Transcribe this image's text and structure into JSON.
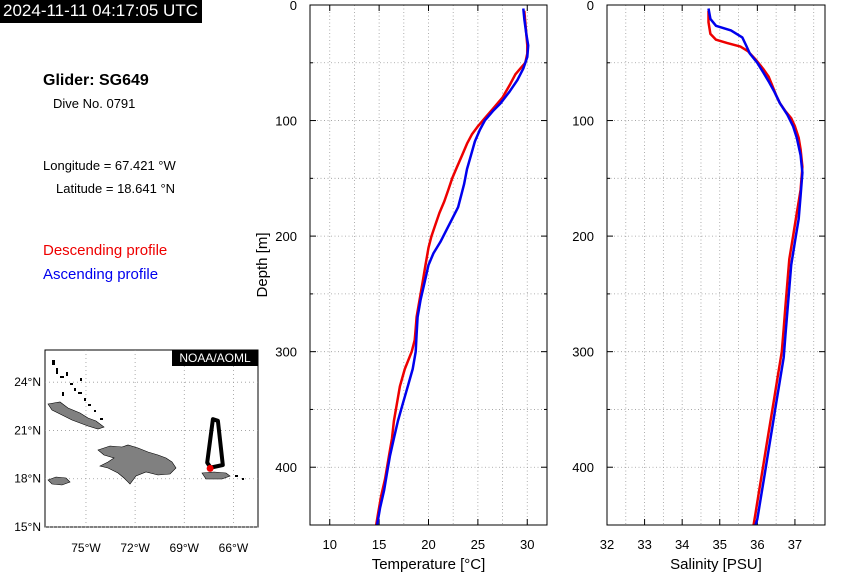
{
  "header": {
    "timestamp": "2024-11-11 04:17:05 UTC"
  },
  "info": {
    "glider": "Glider: SG649",
    "dive": "Dive No. 0791",
    "longitude": "Longitude = 67.421 °W",
    "latitude": "Latitude = 18.641 °N"
  },
  "legend": {
    "descending": "Descending profile",
    "ascending": "Ascending profile",
    "descending_color": "#ee0000",
    "ascending_color": "#0000ee"
  },
  "map": {
    "credit": "NOAA/AOML",
    "lon_labels": [
      "75°W",
      "72°W",
      "69°W",
      "66°W"
    ],
    "lat_labels": [
      "24°N",
      "21°N",
      "18°N",
      "15°N"
    ],
    "lon_ticks": [
      -75,
      -72,
      -69,
      -66
    ],
    "lat_ticks": [
      24,
      21,
      18,
      15
    ],
    "lon_range": [
      -77.5,
      -64.5
    ],
    "lat_range": [
      15,
      26
    ],
    "glider_position": [
      -67.421,
      18.641
    ],
    "track": [
      [
        -67.35,
        18.7
      ],
      [
        -66.65,
        18.85
      ],
      [
        -66.95,
        21.6
      ],
      [
        -67.25,
        21.7
      ],
      [
        -67.6,
        19.0
      ],
      [
        -67.4,
        18.7
      ]
    ],
    "marker_color": "#ee0000",
    "land_color": "#808080"
  },
  "chart_data": [
    {
      "type": "line",
      "xlabel": "Temperature [°C]",
      "ylabel": "Depth [m]",
      "xlim": [
        8,
        32
      ],
      "ylim": [
        450,
        0
      ],
      "xticks": [
        10,
        15,
        20,
        25,
        30
      ],
      "yticks": [
        0,
        100,
        200,
        300,
        400
      ],
      "grid": true,
      "series": [
        {
          "name": "Descending profile",
          "color": "#ee0000",
          "points": [
            [
              29.7,
              5
            ],
            [
              29.8,
              15
            ],
            [
              29.9,
              25
            ],
            [
              30.0,
              35
            ],
            [
              30.0,
              42
            ],
            [
              29.8,
              50
            ],
            [
              29.3,
              55
            ],
            [
              28.8,
              60
            ],
            [
              28.3,
              68
            ],
            [
              27.5,
              80
            ],
            [
              26.5,
              90
            ],
            [
              25.7,
              98
            ],
            [
              25.0,
              105
            ],
            [
              24.4,
              112
            ],
            [
              23.9,
              120
            ],
            [
              23.4,
              130
            ],
            [
              22.9,
              140
            ],
            [
              22.4,
              150
            ],
            [
              22.0,
              160
            ],
            [
              21.6,
              170
            ],
            [
              21.1,
              180
            ],
            [
              20.7,
              190
            ],
            [
              20.3,
              200
            ],
            [
              20.0,
              210
            ],
            [
              19.7,
              225
            ],
            [
              19.4,
              240
            ],
            [
              19.1,
              255
            ],
            [
              18.8,
              270
            ],
            [
              18.7,
              280
            ],
            [
              18.6,
              290
            ],
            [
              18.3,
              300
            ],
            [
              17.6,
              315
            ],
            [
              17.1,
              330
            ],
            [
              16.8,
              345
            ],
            [
              16.5,
              360
            ],
            [
              16.3,
              375
            ],
            [
              16.0,
              390
            ],
            [
              15.6,
              410
            ],
            [
              15.2,
              425
            ],
            [
              14.9,
              440
            ],
            [
              14.7,
              450
            ]
          ]
        },
        {
          "name": "Ascending profile",
          "color": "#0000ee",
          "points": [
            [
              29.6,
              3
            ],
            [
              29.7,
              12
            ],
            [
              29.9,
              25
            ],
            [
              30.1,
              35
            ],
            [
              30.0,
              45
            ],
            [
              29.6,
              55
            ],
            [
              29.0,
              65
            ],
            [
              28.2,
              75
            ],
            [
              27.3,
              85
            ],
            [
              26.5,
              92
            ],
            [
              25.7,
              100
            ],
            [
              25.2,
              108
            ],
            [
              24.7,
              118
            ],
            [
              24.3,
              130
            ],
            [
              23.9,
              142
            ],
            [
              23.6,
              155
            ],
            [
              23.3,
              165
            ],
            [
              23.0,
              175
            ],
            [
              22.4,
              185
            ],
            [
              21.8,
              195
            ],
            [
              21.2,
              205
            ],
            [
              20.5,
              215
            ],
            [
              20.0,
              225
            ],
            [
              19.6,
              240
            ],
            [
              19.2,
              255
            ],
            [
              18.9,
              270
            ],
            [
              18.8,
              285
            ],
            [
              18.7,
              300
            ],
            [
              18.4,
              315
            ],
            [
              17.9,
              330
            ],
            [
              17.4,
              345
            ],
            [
              16.9,
              360
            ],
            [
              16.5,
              375
            ],
            [
              16.1,
              390
            ],
            [
              15.8,
              405
            ],
            [
              15.5,
              420
            ],
            [
              15.1,
              435
            ],
            [
              14.8,
              450
            ]
          ]
        }
      ]
    },
    {
      "type": "line",
      "xlabel": "Salinity [PSU]",
      "ylabel": "",
      "xlim": [
        32,
        37.8
      ],
      "ylim": [
        450,
        0
      ],
      "xticks": [
        32,
        33,
        34,
        35,
        36,
        37
      ],
      "yticks": [
        0,
        100,
        200,
        300,
        400
      ],
      "grid": true,
      "series": [
        {
          "name": "Descending profile",
          "color": "#ee0000",
          "points": [
            [
              34.7,
              5
            ],
            [
              34.7,
              15
            ],
            [
              34.75,
              25
            ],
            [
              34.9,
              30
            ],
            [
              35.2,
              33
            ],
            [
              35.55,
              36
            ],
            [
              35.75,
              40
            ],
            [
              35.95,
              47
            ],
            [
              36.15,
              55
            ],
            [
              36.3,
              62
            ],
            [
              36.4,
              70
            ],
            [
              36.5,
              78
            ],
            [
              36.6,
              85
            ],
            [
              36.75,
              92
            ],
            [
              36.9,
              98
            ],
            [
              37.0,
              105
            ],
            [
              37.1,
              115
            ],
            [
              37.15,
              125
            ],
            [
              37.2,
              140
            ],
            [
              37.15,
              160
            ],
            [
              37.05,
              180
            ],
            [
              36.95,
              200
            ],
            [
              36.85,
              220
            ],
            [
              36.8,
              240
            ],
            [
              36.75,
              260
            ],
            [
              36.7,
              280
            ],
            [
              36.65,
              300
            ],
            [
              36.55,
              320
            ],
            [
              36.45,
              340
            ],
            [
              36.35,
              360
            ],
            [
              36.25,
              380
            ],
            [
              36.15,
              400
            ],
            [
              36.05,
              420
            ],
            [
              35.95,
              440
            ],
            [
              35.9,
              450
            ]
          ]
        },
        {
          "name": "Ascending profile",
          "color": "#0000ee",
          "points": [
            [
              34.7,
              3
            ],
            [
              34.75,
              12
            ],
            [
              34.9,
              18
            ],
            [
              35.3,
              22
            ],
            [
              35.6,
              28
            ],
            [
              35.7,
              35
            ],
            [
              35.8,
              42
            ],
            [
              36.0,
              50
            ],
            [
              36.15,
              58
            ],
            [
              36.3,
              66
            ],
            [
              36.45,
              75
            ],
            [
              36.6,
              85
            ],
            [
              36.8,
              95
            ],
            [
              36.95,
              105
            ],
            [
              37.05,
              115
            ],
            [
              37.15,
              130
            ],
            [
              37.2,
              145
            ],
            [
              37.15,
              165
            ],
            [
              37.1,
              185
            ],
            [
              37.0,
              205
            ],
            [
              36.9,
              225
            ],
            [
              36.85,
              245
            ],
            [
              36.8,
              265
            ],
            [
              36.75,
              285
            ],
            [
              36.7,
              305
            ],
            [
              36.6,
              325
            ],
            [
              36.5,
              345
            ],
            [
              36.4,
              365
            ],
            [
              36.3,
              385
            ],
            [
              36.2,
              405
            ],
            [
              36.1,
              425
            ],
            [
              36.0,
              445
            ],
            [
              35.95,
              450
            ]
          ]
        }
      ]
    }
  ]
}
